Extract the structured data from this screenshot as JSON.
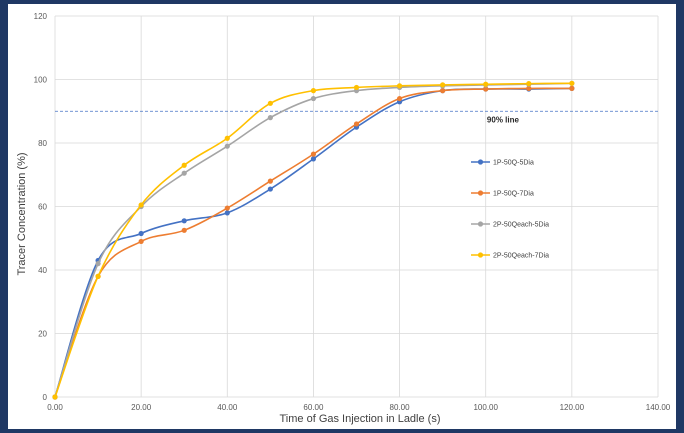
{
  "chart_data": {
    "type": "line",
    "title": "",
    "xlabel": "Time of Gas Injection in Ladle (s)",
    "ylabel": "Tracer Concentration (%)",
    "xlim": [
      0,
      140
    ],
    "ylim": [
      0,
      120
    ],
    "x_ticks": [
      0,
      20,
      40,
      60,
      80,
      100,
      120,
      140
    ],
    "x_tick_labels": [
      "0.00",
      "20.00",
      "40.00",
      "60.00",
      "80.00",
      "100.00",
      "120.00",
      "140.00"
    ],
    "y_ticks": [
      0,
      20,
      40,
      60,
      80,
      100,
      120
    ],
    "y_tick_labels": [
      "0",
      "20",
      "40",
      "60",
      "80",
      "100",
      "120"
    ],
    "grid": true,
    "legend_position": "right",
    "reference_line": {
      "y": 90,
      "label": "90% line",
      "color": "#4472c4"
    },
    "x": [
      0,
      10,
      20,
      30,
      40,
      50,
      60,
      70,
      80,
      90,
      100,
      110,
      120
    ],
    "series": [
      {
        "name": "1P-50Q-5Dia",
        "color": "#4472c4",
        "values": [
          0,
          43,
          51.5,
          55.5,
          58,
          65.5,
          75,
          85,
          93,
          96.5,
          97,
          97,
          97.2
        ]
      },
      {
        "name": "1P-50Q-7Dia",
        "color": "#ed7d31",
        "values": [
          0,
          38,
          49,
          52.5,
          59.5,
          68,
          76.5,
          86,
          94,
          96.5,
          97,
          97.2,
          97.2
        ]
      },
      {
        "name": "2P-50Qeach-5Dia",
        "color": "#a5a5a5",
        "values": [
          0,
          42,
          60,
          70.5,
          79,
          88,
          94,
          96.5,
          97.5,
          98,
          98.3,
          98.5,
          98.8
        ]
      },
      {
        "name": "2P-50Qeach-7Dia",
        "color": "#ffc000",
        "values": [
          0,
          38,
          60.5,
          73,
          81.5,
          92.5,
          96.5,
          97.5,
          98,
          98.3,
          98.5,
          98.7,
          98.8
        ]
      }
    ]
  }
}
